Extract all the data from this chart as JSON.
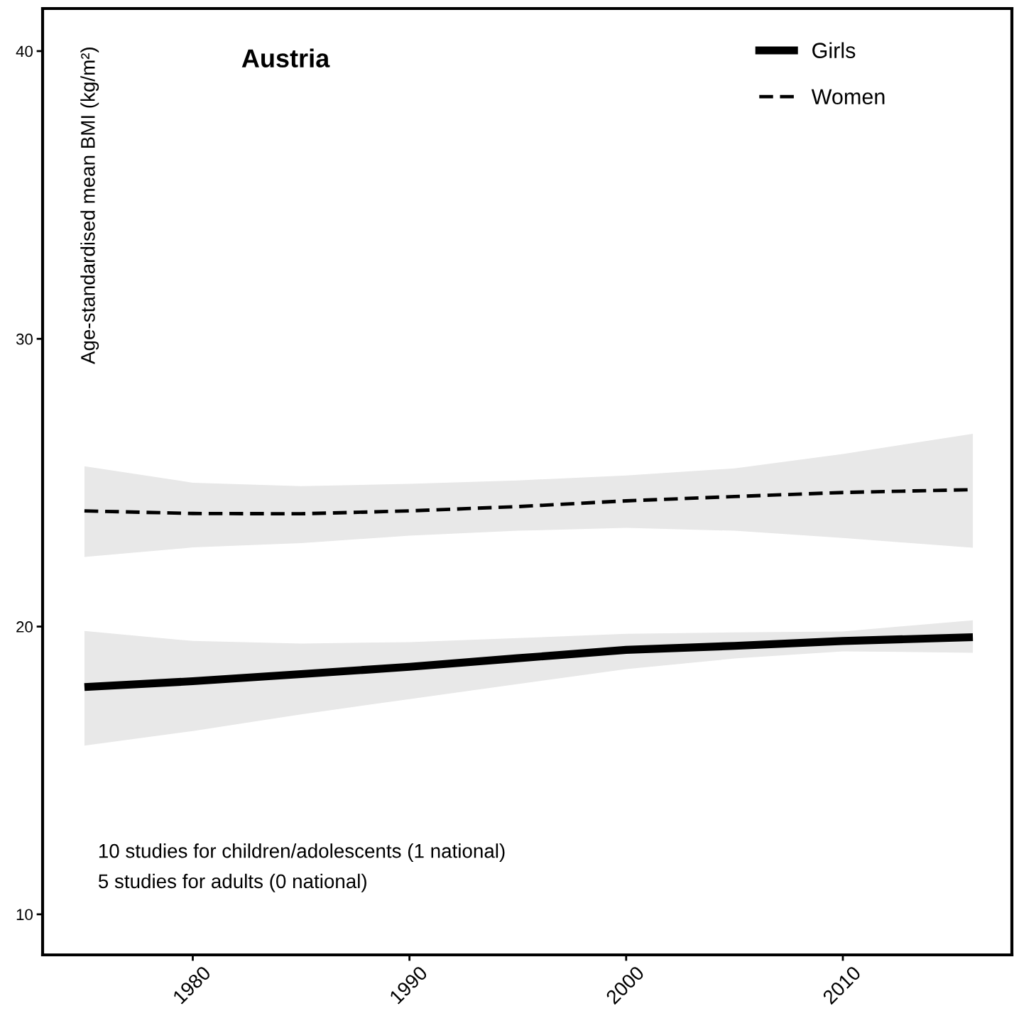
{
  "chart_data": {
    "type": "line",
    "title": "Austria",
    "ylabel": "Age-standardised mean BMI (kg/m²)",
    "x": [
      1975,
      1980,
      1985,
      1990,
      1995,
      2000,
      2005,
      2010,
      2016
    ],
    "series": [
      {
        "name": "Girls",
        "color": "#000000",
        "line_style": "solid",
        "values": [
          17.9,
          18.1,
          18.35,
          18.6,
          18.9,
          19.19,
          19.33,
          19.5,
          19.63
        ],
        "lower": [
          15.86,
          16.37,
          16.95,
          17.48,
          18.0,
          18.52,
          18.89,
          19.14,
          19.09
        ],
        "upper": [
          19.85,
          19.5,
          19.41,
          19.46,
          19.6,
          19.75,
          19.8,
          19.83,
          20.22
        ]
      },
      {
        "name": "Women",
        "color": "#000000",
        "line_style": "dashed",
        "values": [
          24.02,
          23.93,
          23.92,
          24.02,
          24.17,
          24.37,
          24.52,
          24.66,
          24.76
        ],
        "lower": [
          22.42,
          22.75,
          22.9,
          23.16,
          23.33,
          23.43,
          23.33,
          23.08,
          22.74
        ],
        "upper": [
          25.57,
          25.0,
          24.88,
          24.96,
          25.08,
          25.25,
          25.5,
          26.0,
          26.7
        ]
      }
    ],
    "xlim": [
      1973.07,
      2017.8
    ],
    "ylim": [
      8.59,
      41.48
    ],
    "xticks": [
      1980,
      1990,
      2000,
      2010
    ],
    "yticks": [
      10,
      20,
      30,
      40
    ],
    "grid": false,
    "legend": "top right",
    "annotations": [
      "10 studies for children/adolescents (1 national)",
      "5 studies for adults (0 national)"
    ]
  }
}
